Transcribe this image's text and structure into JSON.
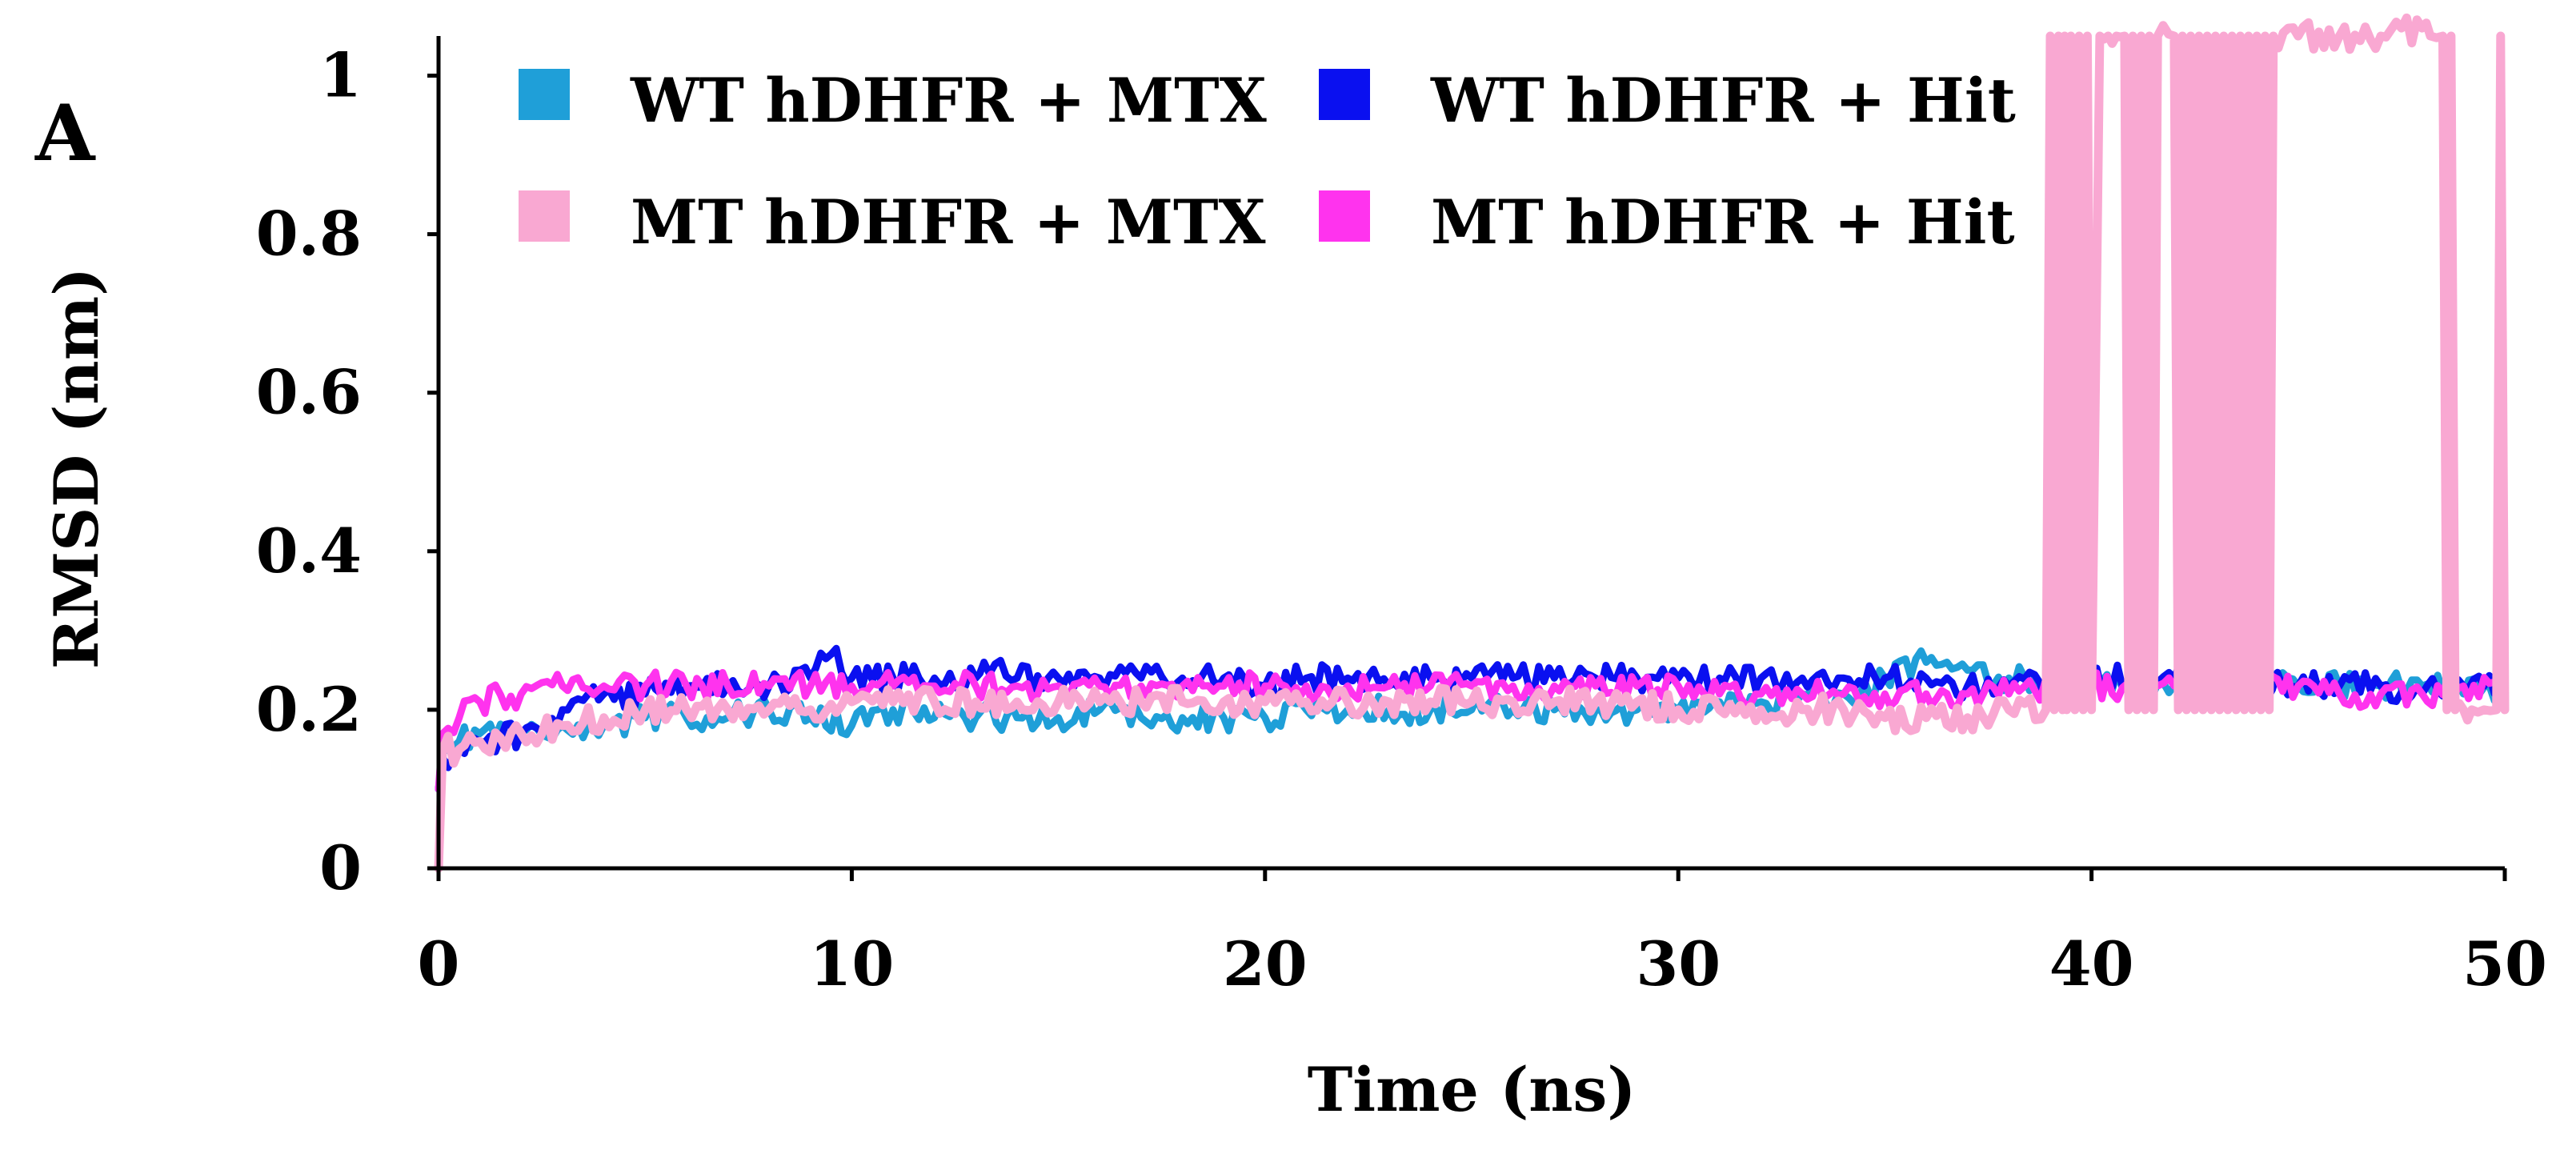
{
  "panel_label": "A",
  "chart_data": {
    "type": "line",
    "title": "",
    "xlabel": "Time (ns)",
    "ylabel": "RMSD (nm)",
    "xlim": [
      0,
      50
    ],
    "ylim": [
      0,
      1.05
    ],
    "x_ticks": [
      0,
      10,
      20,
      30,
      40,
      50
    ],
    "y_ticks": [
      0,
      0.2,
      0.4,
      0.6,
      0.8,
      1
    ],
    "x_tick_labels": [
      "0",
      "10",
      "20",
      "30",
      "40",
      "50"
    ],
    "y_tick_labels": [
      "0",
      "0.2",
      "0.4",
      "0.6",
      "0.8",
      "1"
    ],
    "grid": false,
    "legend_position": "top, inside plot, two columns",
    "series": [
      {
        "name": "WT hDHFR + MTX",
        "color": "#1f9fd8",
        "x": [
          0,
          0.1,
          0.5,
          1,
          2,
          3,
          4,
          5,
          6,
          7,
          8,
          9,
          10,
          11,
          12,
          13,
          14,
          15,
          16,
          17,
          18,
          19,
          20,
          21,
          22,
          23,
          24,
          25,
          26,
          27,
          28,
          29,
          30,
          31,
          32,
          33,
          34,
          35,
          36,
          36.5,
          37,
          38,
          39,
          40,
          41,
          42,
          43,
          44,
          45,
          46,
          47,
          48,
          49,
          50
        ],
        "y": [
          0.1,
          0.15,
          0.16,
          0.17,
          0.17,
          0.18,
          0.18,
          0.19,
          0.19,
          0.19,
          0.2,
          0.19,
          0.18,
          0.2,
          0.19,
          0.19,
          0.19,
          0.19,
          0.2,
          0.19,
          0.19,
          0.19,
          0.19,
          0.2,
          0.2,
          0.2,
          0.2,
          0.2,
          0.2,
          0.2,
          0.2,
          0.2,
          0.2,
          0.21,
          0.21,
          0.22,
          0.22,
          0.24,
          0.26,
          0.26,
          0.25,
          0.24,
          0.23,
          0.23,
          0.23,
          0.23,
          0.24,
          0.23,
          0.23,
          0.23,
          0.23,
          0.23,
          0.22,
          0.23
        ]
      },
      {
        "name": "WT hDHFR + Hit",
        "color": "#0a10f0",
        "x": [
          0,
          0.1,
          0.5,
          1,
          2,
          3,
          4,
          5,
          6,
          7,
          8,
          9,
          9.5,
          10,
          11,
          12,
          13,
          13.2,
          14,
          15,
          16,
          17,
          18,
          19,
          20,
          21,
          22,
          23,
          24,
          25,
          26,
          27,
          28,
          29,
          30,
          31,
          32,
          33,
          34,
          35,
          36,
          37,
          38,
          39,
          40,
          41,
          42,
          43,
          44,
          45,
          46,
          47,
          48,
          49,
          50
        ],
        "y": [
          0.1,
          0.14,
          0.15,
          0.16,
          0.17,
          0.2,
          0.22,
          0.22,
          0.23,
          0.23,
          0.23,
          0.24,
          0.27,
          0.24,
          0.24,
          0.24,
          0.24,
          0.26,
          0.24,
          0.24,
          0.24,
          0.24,
          0.24,
          0.24,
          0.23,
          0.24,
          0.24,
          0.23,
          0.24,
          0.24,
          0.24,
          0.24,
          0.24,
          0.24,
          0.24,
          0.24,
          0.24,
          0.24,
          0.24,
          0.24,
          0.24,
          0.23,
          0.23,
          0.23,
          0.24,
          0.24,
          0.24,
          0.24,
          0.23,
          0.23,
          0.23,
          0.23,
          0.22,
          0.23,
          0.24
        ]
      },
      {
        "name": "MT hDHFR + Hit",
        "color": "#ff33ee",
        "x": [
          0,
          0.1,
          0.5,
          1,
          2,
          3,
          4,
          5,
          6,
          7,
          8,
          9,
          10,
          11,
          12,
          13,
          14,
          15,
          16,
          17,
          18,
          19,
          20,
          21,
          22,
          23,
          24,
          25,
          26,
          27,
          28,
          29,
          30,
          31,
          32,
          33,
          34,
          35,
          36,
          37,
          38,
          39,
          40,
          41,
          42,
          43,
          44,
          45,
          46,
          47,
          48,
          49,
          50
        ],
        "y": [
          0.1,
          0.17,
          0.19,
          0.21,
          0.22,
          0.23,
          0.23,
          0.23,
          0.23,
          0.23,
          0.23,
          0.23,
          0.23,
          0.23,
          0.23,
          0.23,
          0.23,
          0.23,
          0.23,
          0.23,
          0.23,
          0.23,
          0.23,
          0.23,
          0.23,
          0.23,
          0.23,
          0.23,
          0.23,
          0.23,
          0.23,
          0.23,
          0.23,
          0.22,
          0.22,
          0.22,
          0.22,
          0.22,
          0.22,
          0.22,
          0.22,
          0.22,
          0.23,
          0.23,
          0.23,
          0.23,
          0.23,
          0.23,
          0.22,
          0.22,
          0.22,
          0.23,
          0.23
        ]
      },
      {
        "name": "MT hDHFR + MTX",
        "color": "#f9a8d2",
        "x": [
          0,
          0.1,
          0.5,
          1,
          2,
          3,
          4,
          5,
          6,
          7,
          8,
          9,
          10,
          11,
          12,
          13,
          14,
          15,
          16,
          17,
          18,
          19,
          20,
          21,
          22,
          23,
          24,
          25,
          26,
          27,
          28,
          29,
          30,
          31,
          32,
          33,
          34,
          35,
          36,
          37,
          38,
          38.9,
          39.0,
          39.1,
          39.2,
          39.3,
          39.35,
          39.4,
          39.5,
          39.6,
          39.7,
          39.8,
          39.9,
          40.0,
          40.2,
          40.4,
          40.6,
          40.8,
          40.9,
          41.0,
          41.1,
          41.2,
          41.3,
          41.4,
          41.5,
          41.6,
          42.0,
          42.1,
          42.2,
          42.3,
          42.4,
          42.5,
          42.6,
          42.7,
          42.8,
          42.9,
          43.0,
          43.1,
          43.2,
          43.3,
          43.4,
          43.5,
          43.6,
          43.7,
          43.8,
          43.9,
          44.0,
          44.1,
          44.2,
          44.3,
          44.4,
          45,
          46,
          47,
          48,
          48.2,
          48.5,
          48.6,
          48.7,
          48.8,
          49.0,
          49.2,
          49.5,
          49.8,
          49.9,
          50.0
        ],
        "y": [
          0.0,
          0.15,
          0.15,
          0.16,
          0.17,
          0.18,
          0.19,
          0.2,
          0.2,
          0.2,
          0.2,
          0.2,
          0.21,
          0.21,
          0.21,
          0.21,
          0.21,
          0.21,
          0.21,
          0.21,
          0.21,
          0.21,
          0.21,
          0.21,
          0.21,
          0.21,
          0.21,
          0.21,
          0.21,
          0.21,
          0.21,
          0.21,
          0.2,
          0.2,
          0.2,
          0.2,
          0.2,
          0.19,
          0.19,
          0.19,
          0.2,
          0.2,
          1.05,
          0.2,
          1.05,
          0.2,
          1.05,
          0.2,
          1.05,
          0.2,
          1.05,
          0.2,
          1.05,
          0.2,
          1.05,
          1.05,
          1.05,
          1.05,
          0.2,
          1.05,
          0.2,
          1.05,
          0.2,
          1.05,
          0.2,
          1.05,
          1.05,
          0.2,
          1.05,
          0.2,
          1.05,
          0.2,
          1.05,
          0.2,
          1.05,
          0.2,
          1.05,
          0.2,
          1.05,
          0.2,
          1.05,
          0.2,
          1.05,
          0.2,
          1.05,
          0.2,
          1.05,
          0.2,
          1.05,
          0.2,
          1.05,
          1.05,
          1.05,
          1.05,
          1.06,
          1.05,
          1.05,
          0.2,
          1.05,
          0.2,
          0.2,
          0.2,
          0.2,
          0.2,
          1.05,
          0.2
        ]
      }
    ],
    "legend_order": [
      "WT hDHFR + MTX",
      "WT hDHFR + Hit",
      "MT hDHFR + MTX",
      "MT hDHFR + Hit"
    ]
  }
}
